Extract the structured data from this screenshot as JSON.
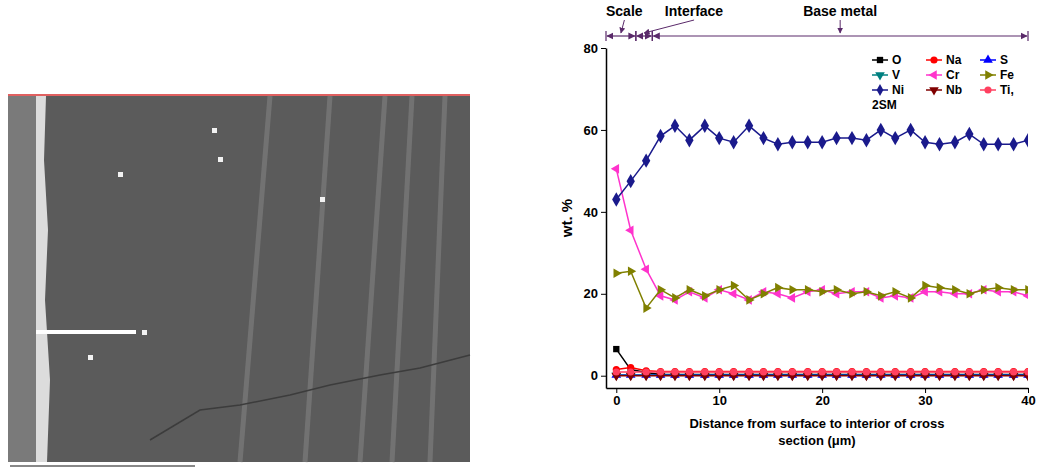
{
  "chart_data": {
    "type": "line",
    "y_label": "wt. %",
    "x_label": "Distance from surface to interior of cross section (μm)",
    "x": [
      0,
      1.4,
      2.9,
      4.3,
      5.7,
      7.1,
      8.6,
      10,
      11.4,
      12.9,
      14.3,
      15.7,
      17.1,
      18.6,
      20,
      21.4,
      22.9,
      24.3,
      25.7,
      27.1,
      28.6,
      30,
      31.4,
      32.9,
      34.3,
      35.7,
      37.1,
      38.6,
      40
    ],
    "xlim": [
      -1,
      40
    ],
    "xticks": [
      0,
      10,
      20,
      30,
      40
    ],
    "ylim": [
      -3,
      80
    ],
    "yticks": [
      0,
      20,
      40,
      60,
      80
    ],
    "legend": "upper right",
    "note": "2SM",
    "regions": [
      {
        "label": "Scale",
        "x_range": [
          -1,
          1.9
        ]
      },
      {
        "label": "Interface",
        "x_range": [
          1.9,
          3.5
        ]
      },
      {
        "label": "Base metal",
        "x_range": [
          3.5,
          40
        ]
      }
    ],
    "series": [
      {
        "name": "O",
        "color": "#000000",
        "marker": "square",
        "line_style": "solid",
        "values": [
          6.5,
          1.5,
          0.8,
          0.3,
          0.3,
          0.3,
          0.3,
          0.3,
          0.3,
          0.3,
          0.3,
          0.3,
          0.3,
          0.3,
          0.3,
          0.3,
          0.3,
          0.3,
          0.3,
          0.3,
          0.3,
          0.3,
          0.3,
          0.3,
          0.3,
          0.3,
          0.3,
          0.3,
          0.3
        ]
      },
      {
        "name": "Na",
        "color": "#ff0000",
        "marker": "circle",
        "line_style": "solid",
        "values": [
          1.5,
          2,
          1.2,
          1,
          1,
          1,
          1,
          1,
          1,
          1,
          1,
          1,
          1,
          1,
          1,
          1,
          1,
          1,
          1,
          1,
          1,
          1,
          1,
          1,
          1,
          1,
          1,
          1,
          1
        ]
      },
      {
        "name": "S",
        "color": "#0000ff",
        "marker": "triangle-up",
        "line_style": "solid",
        "values": [
          0.2,
          0.2,
          0.2,
          0.2,
          0.2,
          0.2,
          0.2,
          0.2,
          0.2,
          0.2,
          0.2,
          0.2,
          0.2,
          0.2,
          0.2,
          0.2,
          0.2,
          0.2,
          0.2,
          0.2,
          0.2,
          0.2,
          0.2,
          0.2,
          0.2,
          0.2,
          0.2,
          0.2,
          0.2
        ]
      },
      {
        "name": "V",
        "color": "#008080",
        "marker": "triangle-down",
        "line_style": "solid",
        "values": [
          0.1,
          0.1,
          0.1,
          0.1,
          0.1,
          0.1,
          0.1,
          0.1,
          0.1,
          0.1,
          0.1,
          0.1,
          0.1,
          0.1,
          0.1,
          0.1,
          0.1,
          0.1,
          0.1,
          0.1,
          0.1,
          0.1,
          0.1,
          0.1,
          0.1,
          0.1,
          0.1,
          0.1,
          0.1
        ]
      },
      {
        "name": "Cr",
        "color": "#ff33cc",
        "marker": "triangle-left",
        "line_style": "solid",
        "values": [
          50.5,
          35.5,
          26,
          19.5,
          18.5,
          20.5,
          19,
          21,
          20,
          18.5,
          20.5,
          20,
          19,
          20.5,
          21,
          20,
          20.5,
          20.5,
          19,
          19.5,
          19,
          20.5,
          20.5,
          20,
          20,
          21,
          20.5,
          20.5,
          19.5
        ]
      },
      {
        "name": "Fe",
        "color": "#808000",
        "marker": "triangle-right",
        "line_style": "solid",
        "values": [
          25,
          25.5,
          16.5,
          21,
          19,
          21,
          19.5,
          21,
          22,
          18.5,
          20,
          21.5,
          21,
          21,
          20.5,
          21,
          20,
          20.5,
          19.5,
          20.5,
          19,
          22,
          21.5,
          21,
          20,
          21,
          21.5,
          21,
          21
        ]
      },
      {
        "name": "Ni",
        "color": "#1a1a8c",
        "marker": "diamond",
        "line_style": "solid",
        "values": [
          43,
          47.5,
          52.5,
          58.5,
          61,
          57.5,
          61,
          58,
          57,
          61,
          58,
          56.5,
          57,
          57,
          57,
          58,
          58,
          57.5,
          60,
          58,
          60,
          57,
          56.5,
          57,
          59,
          56.5,
          56.5,
          56.5,
          57.5
        ]
      },
      {
        "name": "Nb",
        "color": "#800000",
        "marker": "triangle-down",
        "line_style": "solid",
        "values": [
          0,
          0,
          0,
          0,
          0,
          0,
          0,
          0,
          0,
          0,
          0,
          0,
          0,
          0,
          0,
          0,
          0,
          0,
          0,
          0,
          0,
          0,
          0,
          0,
          0,
          0,
          0,
          0,
          0
        ]
      },
      {
        "name": "Ti,",
        "color": "#ff4060",
        "marker": "circle",
        "line_style": "solid",
        "values": [
          0.9,
          0.9,
          0.9,
          0.9,
          0.9,
          0.9,
          0.9,
          0.9,
          0.9,
          0.9,
          0.9,
          0.9,
          0.9,
          0.9,
          0.9,
          0.9,
          0.9,
          0.9,
          0.9,
          0.9,
          0.9,
          0.9,
          0.9,
          0.9,
          0.9,
          0.9,
          0.9,
          0.9,
          0.9
        ]
      }
    ]
  }
}
